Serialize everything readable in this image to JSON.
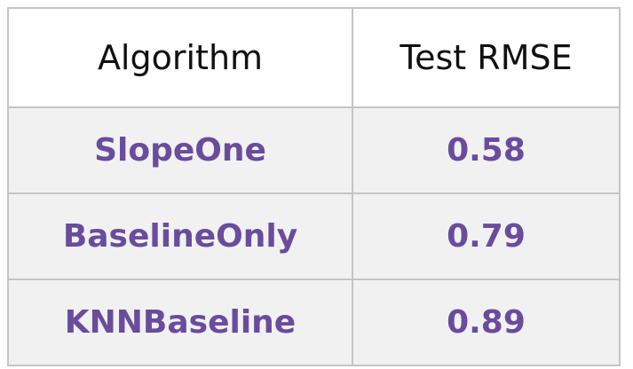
{
  "table": {
    "headers": [
      "Algorithm",
      "Test RMSE"
    ],
    "rows": [
      [
        "SlopeOne",
        "0.58"
      ],
      [
        "BaselineOnly",
        "0.79"
      ],
      [
        "KNNBaseline",
        "0.89"
      ]
    ]
  },
  "colors": {
    "header_text": "#111111",
    "cell_text": "#6a4c9c",
    "row_bg": "#f1f1f1",
    "border": "#c4c4c4"
  }
}
